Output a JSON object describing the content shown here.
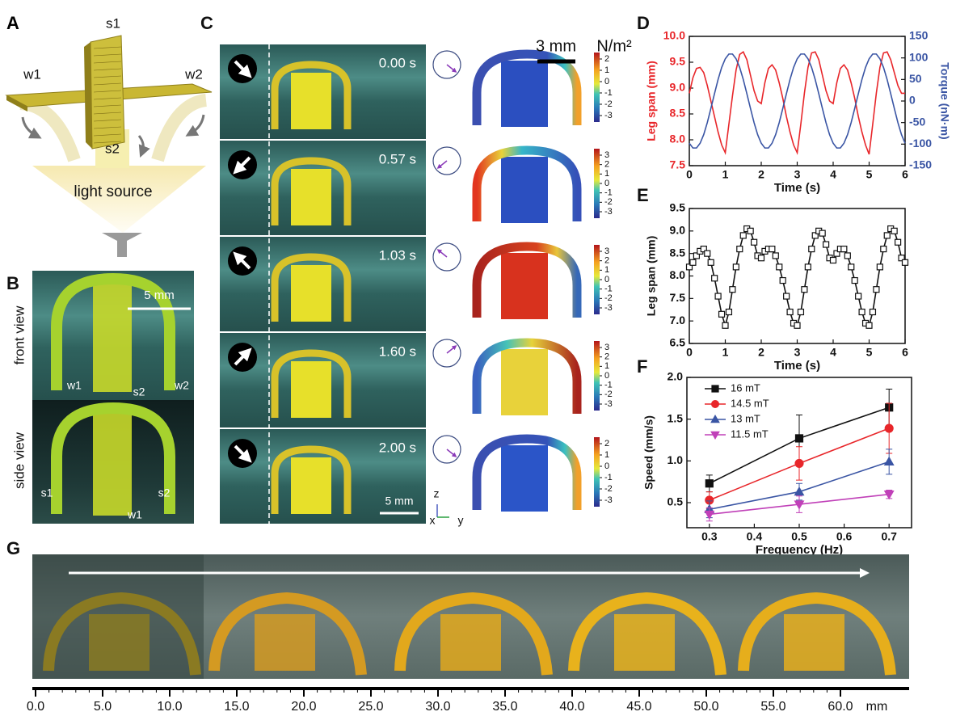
{
  "panel_a": {
    "label": "A",
    "parts": [
      "s1",
      "w1",
      "w2",
      "s2"
    ],
    "caption": "light source"
  },
  "panel_b": {
    "label": "B",
    "scale": "5 mm",
    "front": {
      "title": "front view",
      "parts": [
        "w1",
        "s2",
        "w2"
      ]
    },
    "side": {
      "title": "side view",
      "parts": [
        "s1",
        "s2",
        "w1"
      ]
    }
  },
  "panel_c": {
    "label": "C",
    "scale_top": "3 mm",
    "unit": "N/m²",
    "scale_bottom": "5 mm",
    "axes": [
      "z",
      "x",
      "y"
    ],
    "rows": [
      {
        "time": "0.00 s",
        "colorbar": [
          2,
          1,
          0,
          -1,
          -2,
          -3
        ]
      },
      {
        "time": "0.57 s",
        "colorbar": [
          3,
          2,
          1,
          0,
          -1,
          -2,
          -3
        ]
      },
      {
        "time": "1.03 s",
        "colorbar": [
          3,
          2,
          1,
          0,
          -1,
          -2,
          -3
        ]
      },
      {
        "time": "1.60 s",
        "colorbar": [
          3,
          2,
          1,
          0,
          -1,
          -2,
          -3
        ]
      },
      {
        "time": "2.00 s",
        "colorbar": [
          2,
          1,
          0,
          -1,
          -2,
          -3
        ]
      }
    ]
  },
  "chart_data": [
    {
      "type": "line",
      "panel": "D",
      "xlabel": "Time (s)",
      "ylabel": "Leg span (mm)",
      "y2label": "Torque (nN·m)",
      "xlim": [
        0,
        6
      ],
      "xticks": [
        0,
        1,
        2,
        3,
        4,
        5,
        6
      ],
      "ylim": [
        7.5,
        10
      ],
      "yticks": [
        7.5,
        {
          "value": 8,
          "label": "8.0"
        },
        8.5,
        {
          "value": 9,
          "label": "9.0"
        },
        9.5,
        {
          "value": 10,
          "label": "10.0"
        }
      ],
      "y2lim": [
        -150,
        150
      ],
      "y2ticks": [
        -150,
        -100,
        -50,
        0,
        50,
        100,
        150
      ],
      "x": [
        0,
        0.1,
        0.2,
        0.3,
        0.4,
        0.5,
        0.6,
        0.7,
        0.8,
        0.9,
        1,
        1.1,
        1.2,
        1.3,
        1.4,
        1.5,
        1.6,
        1.7,
        1.8,
        1.9,
        2,
        2.1,
        2.2,
        2.3,
        2.4,
        2.5,
        2.6,
        2.7,
        2.8,
        2.9,
        3,
        3.1,
        3.2,
        3.3,
        3.4,
        3.5,
        3.6,
        3.7,
        3.8,
        3.9,
        4,
        4.1,
        4.2,
        4.3,
        4.4,
        4.5,
        4.6,
        4.7,
        4.8,
        4.9,
        5,
        5.1,
        5.2,
        5.3,
        5.4,
        5.5,
        5.6,
        5.7,
        5.8,
        5.9,
        6
      ],
      "series": [
        {
          "color": "#e8262a",
          "values": [
            8.9,
            9.2,
            9.38,
            9.4,
            9.3,
            9.05,
            8.75,
            8.45,
            8.15,
            7.9,
            7.75,
            8.3,
            8.85,
            9.35,
            9.65,
            9.7,
            9.55,
            9.25,
            8.95,
            8.75,
            8.7,
            9.1,
            9.38,
            9.45,
            9.35,
            9.1,
            8.8,
            8.45,
            8.15,
            7.9,
            7.75,
            8.3,
            8.9,
            9.4,
            9.68,
            9.7,
            9.55,
            9.25,
            8.95,
            8.75,
            8.7,
            9.1,
            9.38,
            9.45,
            9.35,
            9.1,
            8.8,
            8.45,
            8.15,
            7.9,
            7.72,
            8.3,
            8.9,
            9.4,
            9.68,
            9.7,
            9.55,
            9.3,
            9.05,
            8.9,
            8.9
          ]
        },
        {
          "color": "#3a55a4",
          "axis": "y2",
          "values": [
            -98,
            -109,
            -109,
            -98,
            -78,
            -50,
            -17,
            17,
            50,
            78,
            98,
            109,
            109,
            98,
            78,
            50,
            17,
            -17,
            -50,
            -78,
            -98,
            -109,
            -109,
            -98,
            -78,
            -50,
            -17,
            17,
            50,
            78,
            98,
            109,
            109,
            98,
            78,
            50,
            17,
            -17,
            -50,
            -78,
            -98,
            -109,
            -109,
            -98,
            -78,
            -50,
            -17,
            17,
            50,
            78,
            98,
            109,
            109,
            98,
            78,
            50,
            17,
            -17,
            -50,
            -78,
            -98
          ]
        }
      ]
    },
    {
      "type": "line",
      "panel": "E",
      "xlabel": "Time (s)",
      "ylabel": "Leg span (mm)",
      "xlim": [
        0,
        6
      ],
      "xticks": [
        0,
        1,
        2,
        3,
        4,
        5,
        6
      ],
      "ylim": [
        6.5,
        9.5
      ],
      "yticks": [
        6.5,
        {
          "value": 7,
          "label": "7.0"
        },
        7.5,
        {
          "value": 8,
          "label": "8.0"
        },
        8.5,
        {
          "value": 9,
          "label": "9.0"
        },
        9.5
      ],
      "x": [
        0,
        0.1,
        0.2,
        0.3,
        0.4,
        0.5,
        0.6,
        0.7,
        0.8,
        0.9,
        1,
        1.1,
        1.2,
        1.3,
        1.4,
        1.5,
        1.6,
        1.7,
        1.8,
        1.9,
        2,
        2.1,
        2.2,
        2.3,
        2.4,
        2.5,
        2.6,
        2.7,
        2.8,
        2.9,
        3,
        3.1,
        3.2,
        3.3,
        3.4,
        3.5,
        3.6,
        3.7,
        3.8,
        3.9,
        4,
        4.1,
        4.2,
        4.3,
        4.4,
        4.5,
        4.6,
        4.7,
        4.8,
        4.9,
        5,
        5.1,
        5.2,
        5.3,
        5.4,
        5.5,
        5.6,
        5.7,
        5.8,
        5.9,
        6
      ],
      "series": [
        {
          "color": "#111111",
          "marker": "square",
          "marker_open": true,
          "values": [
            8.2,
            8.3,
            8.45,
            8.55,
            8.6,
            8.5,
            8.3,
            7.95,
            7.55,
            7.15,
            6.9,
            7.2,
            7.7,
            8.2,
            8.6,
            8.9,
            9.05,
            9,
            8.75,
            8.45,
            8.4,
            8.55,
            8.6,
            8.6,
            8.45,
            8.2,
            7.9,
            7.55,
            7.2,
            6.95,
            6.9,
            7.2,
            7.7,
            8.2,
            8.6,
            8.9,
            9,
            8.95,
            8.7,
            8.4,
            8.35,
            8.5,
            8.6,
            8.6,
            8.45,
            8.2,
            7.9,
            7.55,
            7.2,
            6.95,
            6.9,
            7.2,
            7.7,
            8.2,
            8.6,
            8.9,
            9.05,
            9,
            8.75,
            8.4,
            8.3
          ]
        }
      ]
    },
    {
      "type": "line",
      "panel": "F",
      "xlabel": "Frequency (Hz)",
      "ylabel": "Speed (mm/s)",
      "legend": "upper left",
      "xlim": [
        0.25,
        0.75
      ],
      "xticks": [
        0.3,
        0.4,
        0.5,
        0.6,
        0.7
      ],
      "ylim": [
        0.2,
        2
      ],
      "yticks": [
        0.5,
        {
          "value": 1,
          "label": "1.0"
        },
        1.5,
        {
          "value": 2,
          "label": "2.0"
        }
      ],
      "x": [
        0.3,
        0.5,
        0.7
      ],
      "series": [
        {
          "name": "16 mT",
          "color": "#111111",
          "marker": "square",
          "values": [
            0.73,
            1.27,
            1.64
          ],
          "errors": [
            0.1,
            0.28,
            0.22
          ]
        },
        {
          "name": "14.5 mT",
          "color": "#e8262a",
          "marker": "circle",
          "values": [
            0.53,
            0.97,
            1.39
          ],
          "errors": [
            0.1,
            0.2,
            0.3
          ]
        },
        {
          "name": "13 mT",
          "color": "#3a55a4",
          "marker": "triangle-up",
          "values": [
            0.42,
            0.63,
            0.99
          ],
          "errors": [
            0.1,
            0.1,
            0.15
          ]
        },
        {
          "name": "11.5 mT",
          "color": "#c040b8",
          "marker": "triangle-down",
          "values": [
            0.36,
            0.48,
            0.6
          ],
          "errors": [
            0.08,
            0.1,
            0.05
          ]
        }
      ]
    }
  ],
  "panel_g": {
    "label": "G",
    "scale_bar": {
      "unit": "mm",
      "ticks": [
        {
          "value": 0,
          "label": "0.0"
        },
        {
          "value": 5,
          "label": "5.0"
        },
        {
          "value": 10,
          "label": "10.0"
        },
        {
          "value": 15,
          "label": "15.0"
        },
        {
          "value": 20,
          "label": "20.0"
        },
        {
          "value": 25,
          "label": "25.0"
        },
        {
          "value": 30,
          "label": "30.0"
        },
        {
          "value": 35,
          "label": "35.0"
        },
        {
          "value": 40,
          "label": "40.0"
        },
        {
          "value": 45,
          "label": "45.0"
        },
        {
          "value": 50,
          "label": "50.0"
        },
        {
          "value": 55,
          "label": "55.0"
        },
        {
          "value": 60,
          "label": "60.0"
        }
      ]
    }
  }
}
